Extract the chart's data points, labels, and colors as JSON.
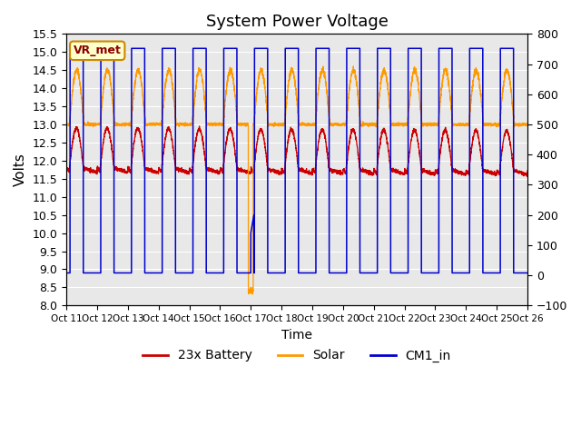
{
  "title": "System Power Voltage",
  "xlabel": "Time",
  "ylabel": "Volts",
  "ylim_left": [
    8.0,
    15.5
  ],
  "ylim_right": [
    -100,
    800
  ],
  "yticks_left": [
    8.0,
    8.5,
    9.0,
    9.5,
    10.0,
    10.5,
    11.0,
    11.5,
    12.0,
    12.5,
    13.0,
    13.5,
    14.0,
    14.5,
    15.0,
    15.5
  ],
  "yticks_right": [
    -100,
    0,
    100,
    200,
    300,
    400,
    500,
    600,
    700,
    800
  ],
  "xtick_labels": [
    "Oct 11",
    "Oct 12",
    "Oct 13",
    "Oct 14",
    "Oct 15",
    "Oct 16",
    "Oct 17",
    "Oct 18",
    "Oct 19",
    "Oct 20",
    "Oct 21",
    "Oct 22",
    "Oct 23",
    "Oct 24",
    "Oct 25",
    "Oct 26"
  ],
  "bg_color": "#e8e8e8",
  "line_colors": {
    "battery": "#cc0000",
    "solar": "#ff9900",
    "cm1": "#0000cc"
  },
  "legend_entries": [
    "23x Battery",
    "Solar",
    "CM1_in"
  ],
  "vr_met_label": "VR_met",
  "n_days": 15,
  "cm1_high": 15.1,
  "cm1_low": 8.9,
  "solar_base": 13.0,
  "battery_base": 11.8
}
